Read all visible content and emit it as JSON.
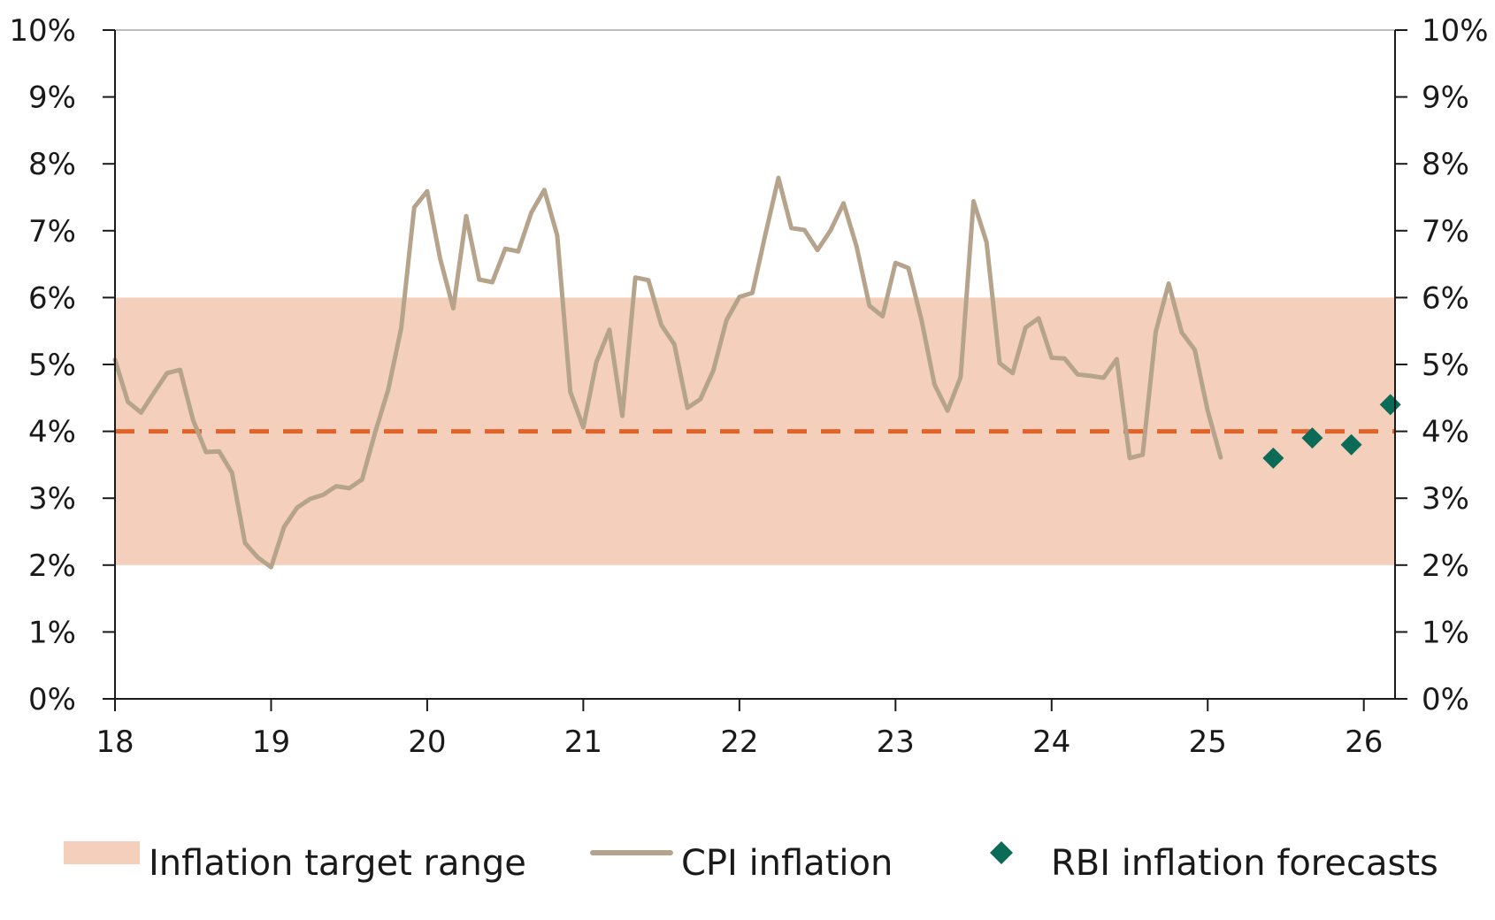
{
  "colors": {
    "target_band": "#f3cfbc",
    "cpi_line": "#b5a38c",
    "target_line": "#e0632a",
    "forecast": "#0b6b57",
    "axis": "#1a1a1a",
    "top_border": "#bdbdbd"
  },
  "legend": {
    "items": [
      {
        "label": "Inflation target range",
        "marker": "band"
      },
      {
        "label": "CPI inflation",
        "marker": "line"
      },
      {
        "label": "RBI inflation forecasts",
        "marker": "diamond"
      }
    ]
  },
  "chart_data": {
    "type": "line",
    "title": "",
    "xlabel": "",
    "ylabel": "",
    "xlim": [
      18,
      26.2
    ],
    "ylim": [
      0,
      10
    ],
    "x_ticks": [
      {
        "value": 18,
        "label": "18"
      },
      {
        "value": 19,
        "label": "19"
      },
      {
        "value": 20,
        "label": "20"
      },
      {
        "value": 21,
        "label": "21"
      },
      {
        "value": 22,
        "label": "22"
      },
      {
        "value": 23,
        "label": "23"
      },
      {
        "value": 24,
        "label": "24"
      },
      {
        "value": 25,
        "label": "25"
      },
      {
        "value": 26,
        "label": "26"
      }
    ],
    "y_ticks": [
      {
        "value": 0,
        "label": "0%"
      },
      {
        "value": 1,
        "label": "1%"
      },
      {
        "value": 2,
        "label": "2%"
      },
      {
        "value": 3,
        "label": "3%"
      },
      {
        "value": 4,
        "label": "4%"
      },
      {
        "value": 5,
        "label": "5%"
      },
      {
        "value": 6,
        "label": "6%"
      },
      {
        "value": 7,
        "label": "7%"
      },
      {
        "value": 8,
        "label": "8%"
      },
      {
        "value": 9,
        "label": "9%"
      },
      {
        "value": 10,
        "label": "10%"
      }
    ],
    "dual_y_axis": true,
    "grid": false,
    "legend_position": "bottom",
    "target_band": {
      "low": 2,
      "high": 6
    },
    "target_line": {
      "value": 4,
      "style": "dashed"
    },
    "series": [
      {
        "type": "line",
        "x": [
          18.0,
          18.083,
          18.167,
          18.25,
          18.333,
          18.417,
          18.5,
          18.583,
          18.667,
          18.75,
          18.833,
          18.917,
          19.0,
          19.083,
          19.167,
          19.25,
          19.333,
          19.417,
          19.5,
          19.583,
          19.667,
          19.75,
          19.833,
          19.917,
          20.0,
          20.083,
          20.167,
          20.25,
          20.333,
          20.417,
          20.5,
          20.583,
          20.667,
          20.75,
          20.833,
          20.917,
          21.0,
          21.083,
          21.167,
          21.25,
          21.333,
          21.417,
          21.5,
          21.583,
          21.667,
          21.75,
          21.833,
          21.917,
          22.0,
          22.083,
          22.167,
          22.25,
          22.333,
          22.417,
          22.5,
          22.583,
          22.667,
          22.75,
          22.833,
          22.917,
          23.0,
          23.083,
          23.167,
          23.25,
          23.333,
          23.417,
          23.5,
          23.583,
          23.667,
          23.75,
          23.833,
          23.917,
          24.0,
          24.083,
          24.167,
          24.25,
          24.333,
          24.417,
          24.5,
          24.583,
          24.667,
          24.75,
          24.833,
          24.917,
          25.0,
          25.083
        ],
        "values": [
          5.07,
          4.44,
          4.28,
          4.58,
          4.87,
          4.92,
          4.17,
          3.69,
          3.7,
          3.38,
          2.33,
          2.11,
          1.97,
          2.57,
          2.86,
          2.99,
          3.05,
          3.18,
          3.15,
          3.28,
          3.99,
          4.62,
          5.54,
          7.35,
          7.59,
          6.58,
          5.84,
          7.22,
          6.27,
          6.23,
          6.73,
          6.69,
          7.27,
          7.61,
          6.93,
          4.59,
          4.06,
          5.03,
          5.52,
          4.23,
          6.3,
          6.26,
          5.59,
          5.3,
          4.35,
          4.48,
          4.91,
          5.66,
          6.01,
          6.07,
          6.95,
          7.79,
          7.04,
          7.01,
          6.71,
          7.0,
          7.41,
          6.77,
          5.88,
          5.72,
          6.52,
          6.44,
          5.66,
          4.7,
          4.31,
          4.81,
          7.44,
          6.83,
          5.02,
          4.87,
          5.55,
          5.69,
          5.1,
          5.09,
          4.85,
          4.83,
          4.8,
          5.08,
          3.6,
          3.65,
          5.49,
          6.21,
          5.48,
          5.22,
          4.31,
          3.61
        ]
      },
      {
        "type": "scatter",
        "x": [
          25.42,
          25.67,
          25.92,
          26.17
        ],
        "values": [
          3.6,
          3.9,
          3.8,
          4.4
        ]
      }
    ]
  }
}
